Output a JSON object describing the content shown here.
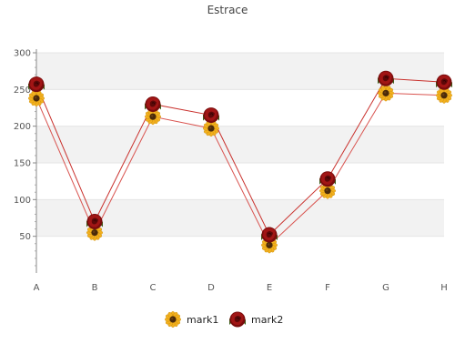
{
  "chart_data": {
    "type": "line",
    "title": "Estrace",
    "categories": [
      "A",
      "B",
      "C",
      "D",
      "E",
      "F",
      "G",
      "H"
    ],
    "ylim": [
      0,
      300
    ],
    "yticks": [
      50,
      100,
      150,
      200,
      250,
      300
    ],
    "grid": true,
    "legend_position": "bottom",
    "series": [
      {
        "name": "mark1",
        "values": [
          238,
          55,
          213,
          197,
          38,
          112,
          245,
          242
        ],
        "marker": "sunflower-icon",
        "color": "#d9534f"
      },
      {
        "name": "mark2",
        "values": [
          257,
          70,
          230,
          215,
          52,
          128,
          265,
          260
        ],
        "marker": "rose-icon",
        "color": "#c9302c"
      }
    ]
  }
}
